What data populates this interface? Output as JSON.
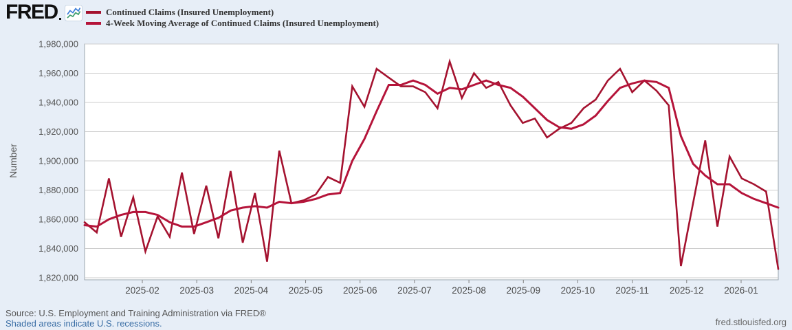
{
  "header": {
    "logo_text": "FRED",
    "logo_icon": "fred-line-chart-icon",
    "legend": [
      {
        "label": "Continued Claims (Insured Unemployment)",
        "color": "#a4122f"
      },
      {
        "label": "4-Week Moving Average of Continued Claims (Insured Unemployment)",
        "color": "#b5143a"
      }
    ]
  },
  "chart_data": {
    "type": "line",
    "title": "",
    "xlabel": "",
    "ylabel": "Number",
    "ylim": [
      1820000,
      1980000
    ],
    "y_tick_values": [
      1980000,
      1960000,
      1940000,
      1920000,
      1900000,
      1880000,
      1860000,
      1840000,
      1820000
    ],
    "y_tick_labels": [
      "1,980,000",
      "1,960,000",
      "1,940,000",
      "1,920,000",
      "1,900,000",
      "1,880,000",
      "1,860,000",
      "1,840,000",
      "1,820,000"
    ],
    "x_tick_labels": [
      "2025-02",
      "2025-03",
      "2025-04",
      "2025-05",
      "2025-06",
      "2025-07",
      "2025-08",
      "2025-09",
      "2025-10",
      "2025-11",
      "2025-12",
      "2026-01"
    ],
    "grid": "horizontal",
    "legend_position": "top-left",
    "frequency": "weekly",
    "series": [
      {
        "name": "Continued Claims (Insured Unemployment)",
        "color": "#a4122f",
        "stroke_width": 2.6,
        "values": [
          1858000,
          1851000,
          1888000,
          1848000,
          1875000,
          1838000,
          1862000,
          1848000,
          1892000,
          1850000,
          1883000,
          1847000,
          1893000,
          1844000,
          1878000,
          1831000,
          1907000,
          1871000,
          1873000,
          1877000,
          1889000,
          1885000,
          1951000,
          1937000,
          1963000,
          1957000,
          1951000,
          1951000,
          1947000,
          1936000,
          1968000,
          1943000,
          1960000,
          1950000,
          1954000,
          1938000,
          1926000,
          1929000,
          1916000,
          1922000,
          1926000,
          1936000,
          1942000,
          1955000,
          1963000,
          1947000,
          1955000,
          1948000,
          1938000,
          1828000,
          1871000,
          1914000,
          1855000,
          1903000,
          1888000,
          1884000,
          1879000,
          1826000
        ]
      },
      {
        "name": "4-Week Moving Average of Continued Claims (Insured Unemployment)",
        "color": "#b5143a",
        "stroke_width": 3,
        "values": [
          1856000,
          1855000,
          1860000,
          1863000,
          1865000,
          1865000,
          1863000,
          1858000,
          1855000,
          1855000,
          1858000,
          1861000,
          1866000,
          1868000,
          1869000,
          1868000,
          1872000,
          1871000,
          1872000,
          1874000,
          1877000,
          1878000,
          1900000,
          1915000,
          1934000,
          1952000,
          1952000,
          1955000,
          1952000,
          1946000,
          1950000,
          1949000,
          1952000,
          1955000,
          1952000,
          1950000,
          1944000,
          1936000,
          1928000,
          1923000,
          1922000,
          1925000,
          1931000,
          1941000,
          1950000,
          1953000,
          1955000,
          1954000,
          1950000,
          1917000,
          1898000,
          1890000,
          1884000,
          1884000,
          1878000,
          1874000,
          1871000,
          1868000
        ]
      }
    ]
  },
  "footer": {
    "source_line": "Source: U.S. Employment and Training Administration via FRED®",
    "recession_note": "Shaded areas indicate U.S. recessions.",
    "site_link": "fred.stlouisfed.org"
  },
  "colors": {
    "page_bg": "#e7eef7",
    "plot_bg": "#ffffff",
    "grid": "#cccccc",
    "plot_border": "#9aa4ad",
    "axis_text": "#555555",
    "tick": "#808080",
    "link": "#3a6ea5"
  }
}
